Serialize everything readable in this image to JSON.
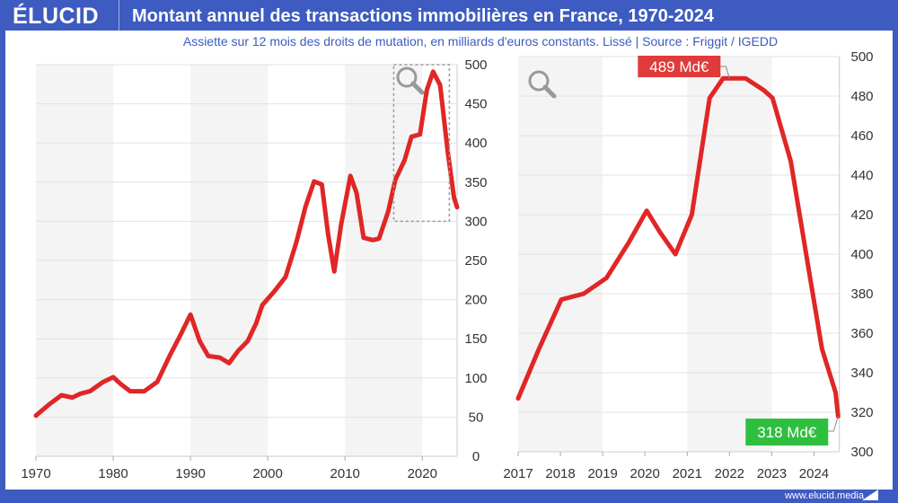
{
  "header": {
    "logo": "ÉLUCID",
    "title": "Montant annuel des transactions immobilières en France, 1970-2024"
  },
  "subtitle": "Assiette sur 12 mois des droits de mutation, en milliards d'euros constants. Lissé  |  Source : Friggit / IGEDD",
  "footer": "www.elucid.media",
  "colors": {
    "brand": "#3d5bc0",
    "line": "#e02626",
    "max_label": "#e03a3a",
    "min_label": "#2fbf3f"
  },
  "chart_data": [
    {
      "type": "line",
      "title": "",
      "xlabel": "",
      "ylabel": "",
      "xlim": [
        1970,
        2024.5
      ],
      "ylim": [
        0,
        500
      ],
      "grid": true,
      "xticks": [
        1970,
        1980,
        1990,
        2000,
        2010,
        2020
      ],
      "yticks": [
        0,
        50,
        100,
        150,
        200,
        250,
        300,
        350,
        400,
        450,
        500
      ],
      "zoom_box": {
        "x": [
          2016.3,
          2023.5
        ],
        "y": [
          300,
          500
        ]
      },
      "icon": "magnifier-icon",
      "x": [
        1970,
        1971.7,
        1973.3,
        1974.7,
        1975.8,
        1977,
        1978.7,
        1980,
        1981,
        1982.2,
        1984,
        1985.7,
        1987.4,
        1988.6,
        1990,
        1991.2,
        1992.3,
        1993.8,
        1995,
        1996.2,
        1997.4,
        1998.5,
        1999.3,
        2000.8,
        2002.3,
        2003.7,
        2004.9,
        2006,
        2007,
        2007.8,
        2008.6,
        2009.5,
        2010.7,
        2011.5,
        2012.4,
        2013.6,
        2014.4,
        2015.6,
        2016.5,
        2017.7,
        2018.6,
        2019.7,
        2020.6,
        2021.4,
        2022.3,
        2023.3,
        2024.1,
        2024.5
      ],
      "y": [
        52,
        66,
        78,
        75,
        80,
        83,
        95,
        101,
        92,
        83,
        83,
        95,
        130,
        153,
        181,
        147,
        128,
        126,
        119,
        135,
        147,
        170,
        193,
        210,
        229,
        273,
        319,
        351,
        347,
        284,
        236,
        296,
        358,
        336,
        279,
        276,
        278,
        313,
        353,
        378,
        408,
        411,
        468,
        491,
        474,
        388,
        330,
        318
      ]
    },
    {
      "type": "line",
      "title": "",
      "xlabel": "",
      "ylabel": "",
      "xlim": [
        2017,
        2024.6
      ],
      "ylim": [
        300,
        500
      ],
      "grid": true,
      "xticks": [
        2017,
        2018,
        2019,
        2020,
        2021,
        2022,
        2023,
        2024
      ],
      "yticks": [
        300,
        320,
        340,
        360,
        380,
        400,
        420,
        440,
        460,
        480,
        500
      ],
      "icon": "magnifier-icon",
      "annotations": [
        {
          "text": "489 Md€",
          "x": 2022.0,
          "y": 489,
          "kind": "max"
        },
        {
          "text": "318 Md€",
          "x": 2024.57,
          "y": 318,
          "kind": "min"
        }
      ],
      "x": [
        2017.0,
        2017.49,
        2018.02,
        2018.55,
        2019.09,
        2019.62,
        2020.04,
        2020.36,
        2020.72,
        2021.11,
        2021.53,
        2021.85,
        2022.38,
        2022.81,
        2023.02,
        2023.45,
        2023.87,
        2024.19,
        2024.51,
        2024.57
      ],
      "y": [
        327,
        352,
        377,
        380,
        388,
        406,
        422,
        411,
        400,
        420,
        479,
        489,
        489,
        483,
        479,
        447,
        393,
        352,
        330,
        318
      ]
    }
  ]
}
